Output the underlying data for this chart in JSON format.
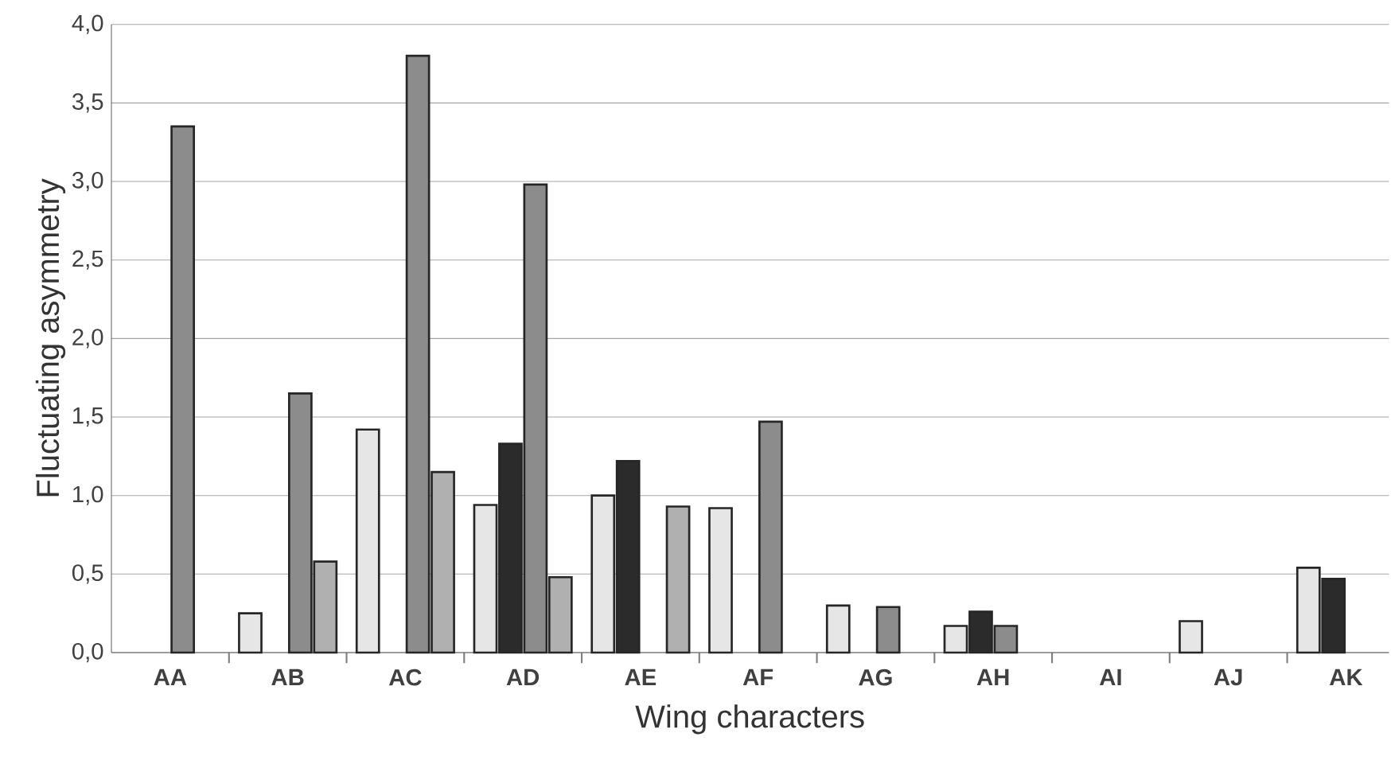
{
  "chart_data": {
    "type": "bar",
    "xlabel": "Wing characters",
    "ylabel": "Fluctuating asymmetry",
    "categories": [
      "AA",
      "AB",
      "AC",
      "AD",
      "AE",
      "AF",
      "AG",
      "AH",
      "AI",
      "AJ",
      "AK"
    ],
    "series": [
      {
        "color": "#e6e6e6",
        "values": [
          null,
          0.25,
          1.42,
          0.94,
          1.0,
          0.92,
          0.3,
          0.17,
          null,
          0.2,
          0.54
        ]
      },
      {
        "color": "#2b2b2b",
        "values": [
          null,
          null,
          null,
          1.33,
          1.22,
          null,
          null,
          0.26,
          null,
          null,
          0.47
        ]
      },
      {
        "color": "#8c8c8c",
        "values": [
          3.35,
          1.65,
          3.8,
          2.98,
          null,
          1.47,
          0.29,
          0.17,
          null,
          null,
          null
        ]
      },
      {
        "color": "#b0b0b0",
        "values": [
          null,
          0.58,
          1.15,
          0.48,
          0.93,
          null,
          null,
          null,
          null,
          null,
          null
        ]
      }
    ],
    "ylim": [
      0,
      4
    ],
    "yticks": [
      {
        "value": 0,
        "label": "0,0"
      },
      {
        "value": 0.5,
        "label": "0,5"
      },
      {
        "value": 1,
        "label": "1,0"
      },
      {
        "value": 1.5,
        "label": "1,5"
      },
      {
        "value": 2,
        "label": "2,0"
      },
      {
        "value": 2.5,
        "label": "2,5"
      },
      {
        "value": 3,
        "label": "3,0"
      },
      {
        "value": 3.5,
        "label": "3,5"
      },
      {
        "value": 4,
        "label": "4,0"
      }
    ],
    "grid": "y"
  }
}
